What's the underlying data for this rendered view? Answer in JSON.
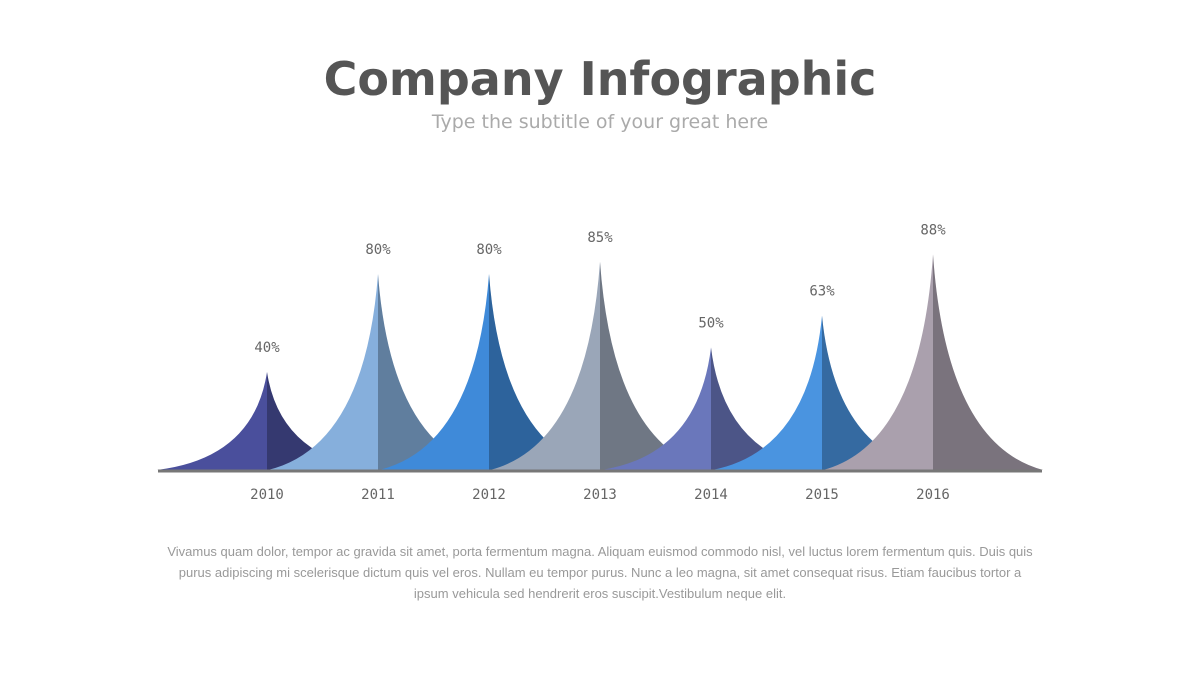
{
  "chart_data": {
    "type": "peak",
    "title": "Company Infographic",
    "subtitle": "Type the subtitle of your great here",
    "categories": [
      "2010",
      "2011",
      "2012",
      "2013",
      "2014",
      "2015",
      "2016"
    ],
    "values": [
      40,
      80,
      80,
      85,
      50,
      63,
      88
    ],
    "value_labels": [
      "40%",
      "80%",
      "80%",
      "85%",
      "50%",
      "63%",
      "88%"
    ],
    "colors": [
      "#4a4f9c",
      "#86afdc",
      "#3f8ad9",
      "#9aa6b8",
      "#6a77bb",
      "#4a94e0",
      "#aaa0ad"
    ],
    "body": "Vivamus quam dolor, tempor ac gravida sit amet, porta fermentum magna. Aliquam euismod commodo nisl, vel luctus lorem fermentum quis. Duis quis purus adipiscing mi scelerisque dictum quis vel eros. Nullam eu tempor purus. Nunc a leo magna, sit amet consequat risus. Etiam faucibus tortor a ipsum vehicula sed hendrerit eros suscipit.Vestibulum neque elit."
  }
}
